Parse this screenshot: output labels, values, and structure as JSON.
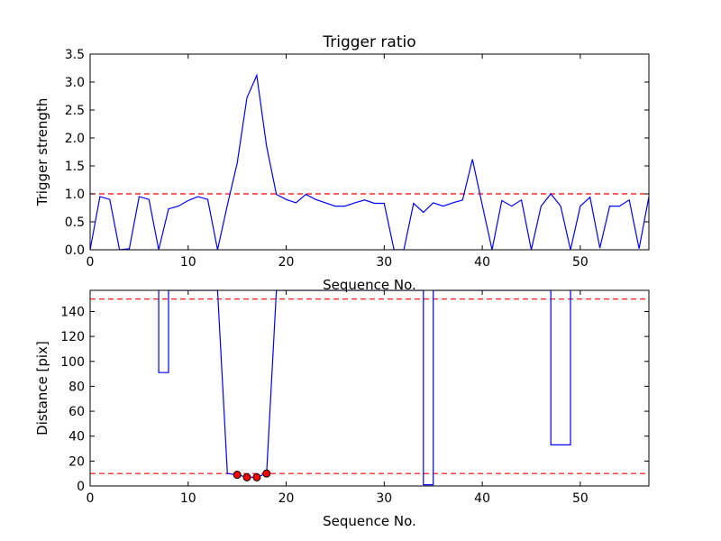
{
  "figure_title": "Trigger ratio",
  "colors": {
    "line": "#0000ff",
    "threshold": "#ff0000",
    "marker_fill": "#ff0000",
    "axes": "#000000"
  },
  "chart_data": [
    {
      "type": "line",
      "title": "Trigger ratio",
      "xlabel": "Sequence No.",
      "ylabel": "Trigger strength",
      "xlim": [
        0,
        57
      ],
      "ylim": [
        0,
        3.5
      ],
      "xticks": [
        0,
        10,
        20,
        30,
        40,
        50
      ],
      "yticks": [
        "0.0",
        "0.5",
        "1.0",
        "1.5",
        "2.0",
        "2.5",
        "3.0",
        "3.5"
      ],
      "series": [
        {
          "name": "Trigger strength",
          "x": [
            0,
            1,
            2,
            3,
            4,
            5,
            6,
            7,
            8,
            9,
            10,
            11,
            12,
            13,
            14,
            15,
            16,
            17,
            18,
            19,
            20,
            21,
            22,
            23,
            24,
            25,
            26,
            27,
            28,
            29,
            30,
            31,
            32,
            33,
            34,
            35,
            36,
            37,
            38,
            39,
            40,
            41,
            42,
            43,
            44,
            45,
            46,
            47,
            48,
            49,
            50,
            51,
            52,
            53,
            54,
            55,
            56,
            57
          ],
          "values": [
            0.0,
            0.95,
            0.9,
            0.0,
            0.02,
            0.95,
            0.9,
            0.0,
            0.73,
            0.78,
            0.88,
            0.95,
            0.9,
            0.0,
            0.8,
            1.55,
            2.72,
            3.12,
            1.85,
            0.99,
            0.9,
            0.84,
            0.99,
            0.9,
            0.84,
            0.78,
            0.78,
            0.84,
            0.89,
            0.83,
            0.83,
            0.0,
            0.0,
            0.83,
            0.67,
            0.84,
            0.78,
            0.84,
            0.89,
            1.62,
            0.8,
            0.0,
            0.88,
            0.78,
            0.89,
            0.0,
            0.78,
            1.0,
            0.78,
            0.0,
            0.78,
            0.94,
            0.03,
            0.78,
            0.78,
            0.89,
            0.02,
            0.95
          ]
        }
      ],
      "hlines": [
        1.0
      ]
    },
    {
      "type": "line",
      "title": "",
      "xlabel": "Sequence No.",
      "ylabel": "Distance [pix]",
      "xlim": [
        0,
        57
      ],
      "ylim": [
        0,
        157
      ],
      "xticks": [
        0,
        10,
        20,
        30,
        40,
        50
      ],
      "yticks": [
        0,
        20,
        40,
        60,
        80,
        100,
        120,
        140
      ],
      "series": [
        {
          "name": "Distance",
          "x": [
            7,
            7,
            8,
            8,
            13,
            14,
            15,
            16,
            17,
            18,
            19,
            34,
            34,
            35,
            35,
            47,
            47,
            49,
            49
          ],
          "values": [
            157,
            91,
            91,
            157,
            157,
            10,
            9,
            7,
            7,
            10,
            157,
            157,
            1,
            1,
            157,
            157,
            33,
            33,
            157
          ]
        },
        {
          "name": "Selected points",
          "style": "markers",
          "x": [
            15,
            16,
            17,
            18
          ],
          "values": [
            9,
            7,
            7,
            10
          ]
        }
      ],
      "hlines": [
        150,
        10
      ]
    }
  ]
}
